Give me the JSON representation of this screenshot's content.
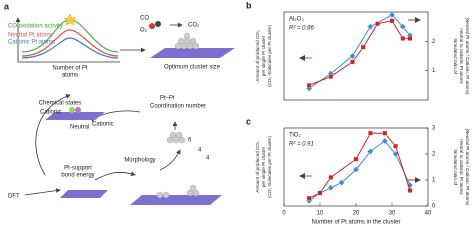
{
  "diagram": {
    "panel_label": "a",
    "legend": {
      "activity": "CO oxidation activity",
      "neutral": "Neutral Pt atoms",
      "cationic": "Cationic Pt atoms"
    },
    "axis_label": [
      "Number of Pt",
      "atoms"
    ],
    "molecules": {
      "co": "CO",
      "o2": "O₂",
      "co2": "CO₂"
    },
    "optimum": "Optimum cluster size",
    "chemical_states": "Chemical states",
    "cationic_1": "Cationic",
    "neutral": "Neutral",
    "cationic_2": "Cationic",
    "coordination": [
      "Pt–Pt",
      "Coordination number"
    ],
    "bond_energy": [
      "Pt-support",
      "bond energy"
    ],
    "morphology": "Morphology",
    "dft": "DFT",
    "numbers": [
      "6",
      "4",
      "4"
    ]
  },
  "chart_data": [
    {
      "type": "line",
      "panel_label": "b",
      "title": "Al₂O₃",
      "annotation": "R² = 0.86",
      "ylabel": [
        "Amount of produced CO₂",
        "per single Pt cluster",
        "(CO₂ molecules per Pt cluster)"
      ],
      "y2label": [
        "Simulated ratio of",
        "neutral to cationic Pt atoms",
        "(Neutral Pt atoms / Cationic Pt atoms)"
      ],
      "xlim": [
        0,
        40
      ],
      "ylim": [
        0,
        3
      ],
      "y2lim": [
        0,
        3
      ],
      "y2ticks": [
        1,
        2
      ],
      "series": [
        {
          "color": "#3a8fd0",
          "marker": "diamond",
          "axis": "y",
          "x": [
            7,
            13,
            19,
            24,
            30,
            33,
            35
          ],
          "values": [
            0.4,
            0.9,
            1.5,
            2.5,
            2.9,
            2.5,
            2.2
          ]
        },
        {
          "color": "#c8242b",
          "marker": "square",
          "axis": "y2",
          "x": [
            7,
            13,
            19,
            22,
            26,
            30,
            33,
            35
          ],
          "values": [
            0.5,
            0.8,
            1.3,
            1.8,
            2.6,
            2.7,
            2.1,
            2.1
          ]
        }
      ]
    },
    {
      "type": "line",
      "panel_label": "c",
      "title": "TiO₂",
      "annotation": "R² = 0.91",
      "ylabel": [
        "Amount of produced CO₂",
        "per single Pt cluster",
        "(CO₂ molecules per Pt cluster)"
      ],
      "y2label": [
        "Simulated ratio of",
        "neutral to cationic Pt atoms",
        "(Neutral Pt atoms / Cationic Pt atoms)"
      ],
      "xlabel": "Number of Pt atoms in the cluster",
      "xlim": [
        0,
        40
      ],
      "xticks": [
        0,
        10,
        20,
        30,
        40
      ],
      "ylim": [
        0,
        3
      ],
      "y2lim": [
        0,
        3
      ],
      "y2ticks": [
        0,
        1,
        2,
        3
      ],
      "series": [
        {
          "color": "#3a8fd0",
          "marker": "diamond",
          "axis": "y",
          "x": [
            7,
            10,
            13,
            16,
            20,
            24,
            28,
            31,
            35
          ],
          "values": [
            0.2,
            0.5,
            0.7,
            0.9,
            1.4,
            2.1,
            2.5,
            2.0,
            0.8
          ]
        },
        {
          "color": "#c8242b",
          "marker": "square",
          "axis": "y2",
          "x": [
            7,
            10,
            13,
            20,
            24,
            28,
            31,
            35
          ],
          "values": [
            0.3,
            0.5,
            1.1,
            1.8,
            2.8,
            2.8,
            2.3,
            0.6
          ]
        }
      ]
    }
  ]
}
